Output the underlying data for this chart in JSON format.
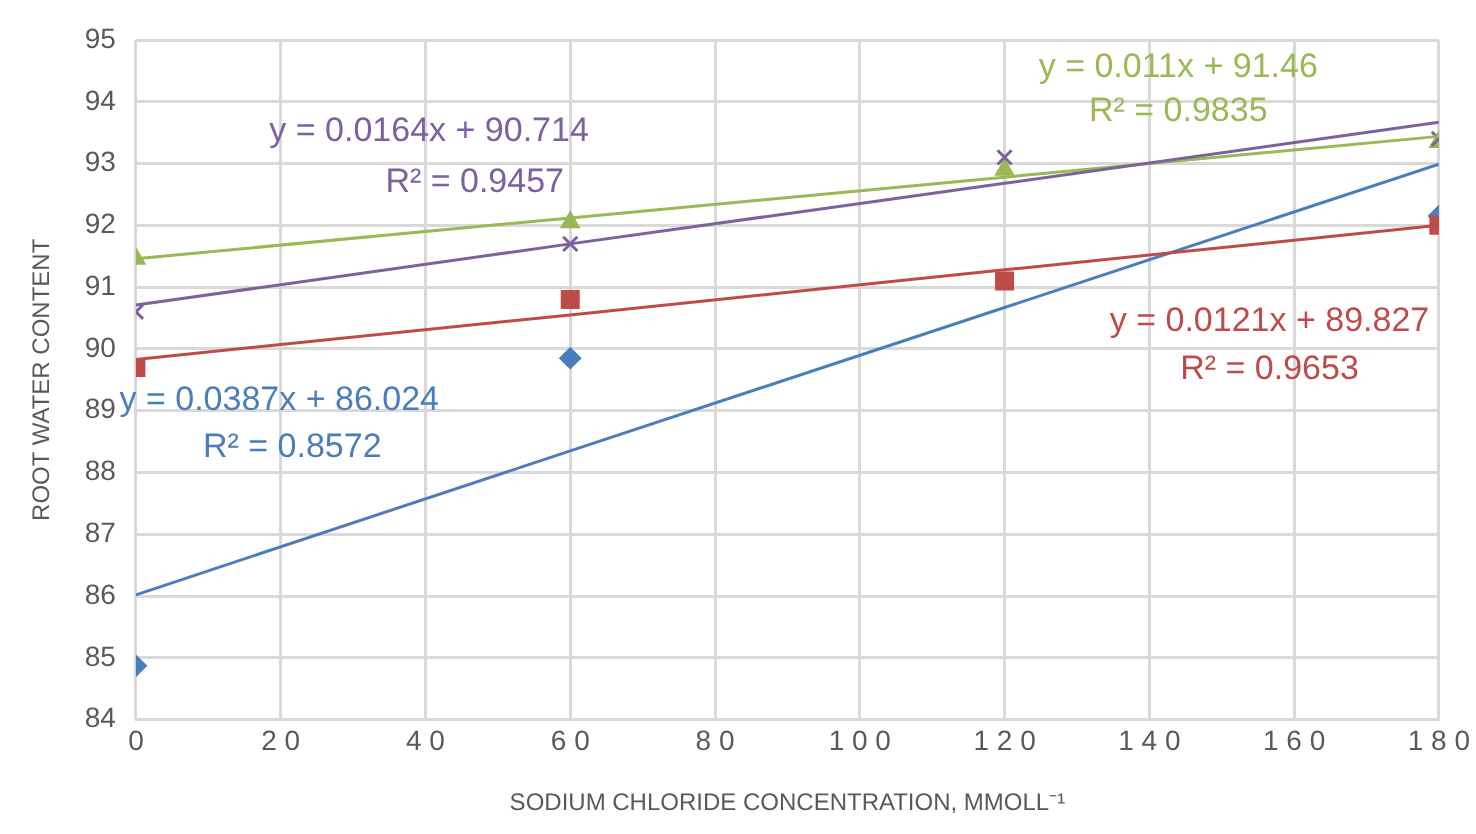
{
  "chart_data": {
    "type": "scatter",
    "xlabel": "SODIUM CHLORIDE CONCENTRATION, MMOLL⁻¹",
    "ylabel": "ROOT WATER CONTENT",
    "x": [
      0,
      60,
      120,
      180
    ],
    "series": [
      {
        "color": "#4a7ebb",
        "marker": "diamond",
        "values": [
          84.87,
          89.85,
          null,
          92.15
        ]
      },
      {
        "color": "#be4b48",
        "marker": "square",
        "values": [
          89.7,
          90.8,
          91.1,
          92.0
        ]
      },
      {
        "color": "#98b954",
        "marker": "triangle",
        "values": [
          91.46,
          92.05,
          92.9,
          93.35
        ]
      },
      {
        "color": "#7d60a0",
        "marker": "cross",
        "values": [
          90.6,
          91.7,
          93.1,
          93.4
        ]
      },
      {
        "type": "line",
        "color": "#4a7ebb",
        "marker": "none",
        "values": [
          86.02,
          88.35,
          90.67,
          92.99
        ]
      },
      {
        "type": "line",
        "color": "#be4b48",
        "marker": "none",
        "values": [
          89.83,
          90.55,
          91.28,
          92.0
        ]
      },
      {
        "type": "line",
        "color": "#98b954",
        "marker": "none",
        "values": [
          91.46,
          92.12,
          92.78,
          93.44
        ]
      },
      {
        "type": "line",
        "color": "#7d60a0",
        "marker": "none",
        "values": [
          90.71,
          91.7,
          92.68,
          93.67
        ]
      }
    ],
    "annotations": [
      "y = 0.0387x + 86.024",
      "R² = 0.8572",
      "y = 0.0121x + 89.827",
      "R² = 0.9653",
      "y = 0.011x + 91.46",
      "R² = 0.9835",
      "y = 0.0164x + 90.714",
      "R² = 0.9457"
    ],
    "xlim": [
      0,
      180
    ],
    "xticks": [
      0,
      20,
      40,
      60,
      80,
      100,
      120,
      140,
      160,
      180
    ],
    "ylim": [
      84,
      95
    ],
    "yticks": [
      84,
      85,
      86,
      87,
      88,
      89,
      90,
      91,
      92,
      93,
      94,
      95
    ],
    "grid": true,
    "legend": false
  }
}
